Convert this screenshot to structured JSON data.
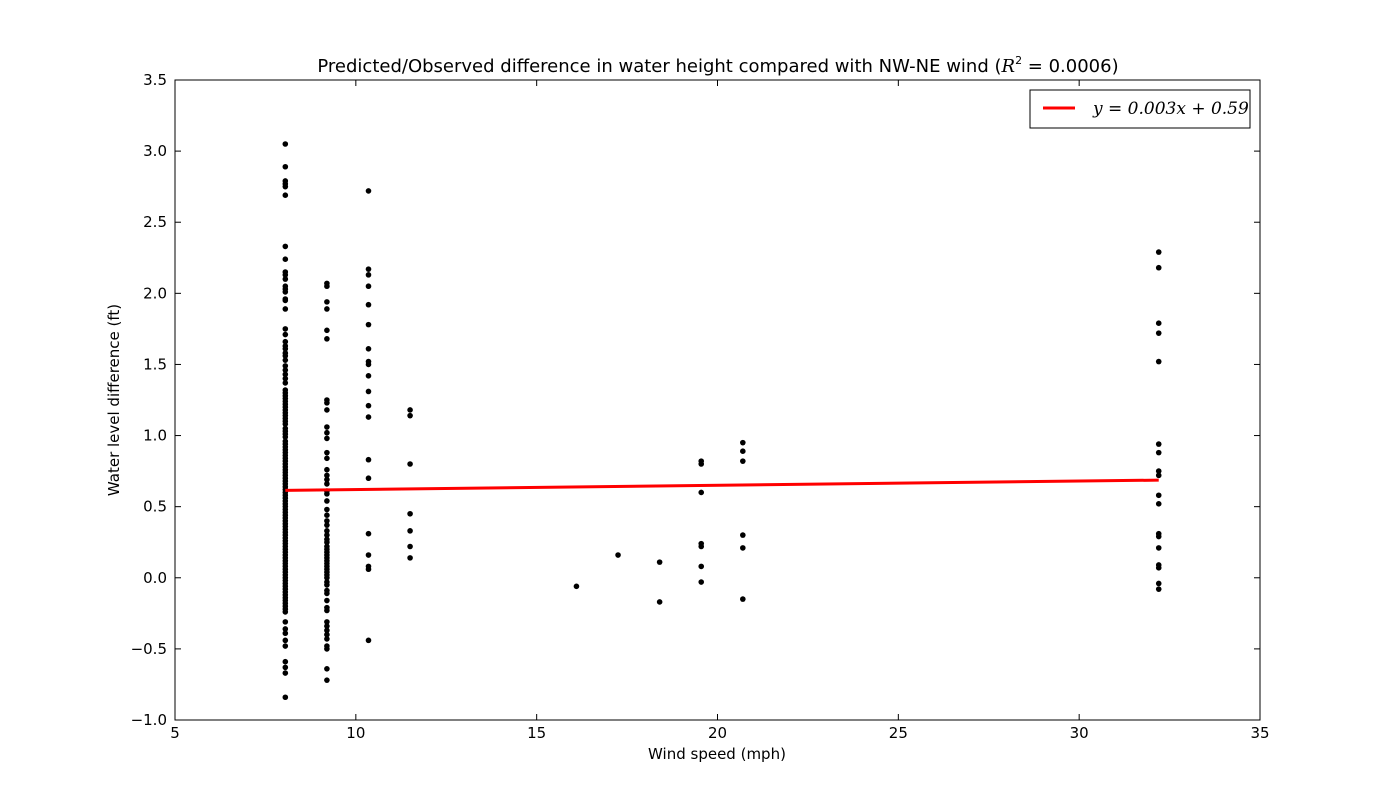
{
  "chart_data": {
    "type": "scatter",
    "title_prefix": "Predicted/Observed difference in water height compared with NW-NE wind (",
    "title_r2_symbol": "R",
    "title_r2_exp": "2",
    "title_suffix": " = 0.0006)",
    "xlabel": "Wind speed (mph)",
    "ylabel": "Water level difference (ft)",
    "xlim": [
      5,
      35
    ],
    "ylim": [
      -1.0,
      3.5
    ],
    "x_ticks": [
      5,
      10,
      15,
      20,
      25,
      30,
      35
    ],
    "y_ticks": [
      -1.0,
      -0.5,
      0.0,
      0.5,
      1.0,
      1.5,
      2.0,
      2.5,
      3.0,
      3.5
    ],
    "x_tick_labels": [
      "5",
      "10",
      "15",
      "20",
      "25",
      "30",
      "35"
    ],
    "y_tick_labels": [
      "−1.0",
      "−0.5",
      "0.0",
      "0.5",
      "1.0",
      "1.5",
      "2.0",
      "2.5",
      "3.0",
      "3.5"
    ],
    "grid": false,
    "legend_position": "top-right",
    "point_color": "#000000",
    "line_color": "#ff0000",
    "fit": {
      "slope": 0.003,
      "intercept": 0.59,
      "x_range": [
        8.05,
        32.2
      ],
      "label": "y = 0.003x + 0.59"
    },
    "series": [
      {
        "x": 8.05,
        "y": [
          3.05,
          2.89,
          2.79,
          2.77,
          2.75,
          2.69,
          2.33,
          2.24,
          2.15,
          2.13,
          2.1,
          2.05,
          2.03,
          2.01,
          1.96,
          1.95,
          1.89,
          1.75,
          1.71,
          1.66,
          1.63,
          1.61,
          1.58,
          1.56,
          1.53,
          1.49,
          1.46,
          1.43,
          1.4,
          1.37,
          1.32,
          1.3,
          1.28,
          1.26,
          1.24,
          1.22,
          1.2,
          1.18,
          1.16,
          1.14,
          1.12,
          1.1,
          1.08,
          1.05,
          1.03,
          1.01,
          0.99,
          0.96,
          0.94,
          0.92,
          0.9,
          0.88,
          0.86,
          0.84,
          0.82,
          0.8,
          0.78,
          0.76,
          0.74,
          0.72,
          0.7,
          0.68,
          0.66,
          0.64,
          0.62,
          0.6,
          0.58,
          0.56,
          0.54,
          0.52,
          0.5,
          0.48,
          0.46,
          0.44,
          0.42,
          0.4,
          0.38,
          0.36,
          0.34,
          0.32,
          0.3,
          0.28,
          0.26,
          0.24,
          0.22,
          0.2,
          0.18,
          0.16,
          0.14,
          0.12,
          0.1,
          0.08,
          0.06,
          0.04,
          0.02,
          0.0,
          -0.02,
          -0.04,
          -0.06,
          -0.08,
          -0.1,
          -0.12,
          -0.14,
          -0.16,
          -0.18,
          -0.2,
          -0.22,
          -0.24,
          -0.31,
          -0.36,
          -0.39,
          -0.44,
          -0.48,
          -0.59,
          -0.63,
          -0.67,
          -0.84
        ]
      },
      {
        "x": 9.2,
        "y": [
          2.07,
          2.05,
          1.94,
          1.89,
          1.74,
          1.68,
          1.25,
          1.23,
          1.18,
          1.06,
          1.02,
          0.98,
          0.88,
          0.84,
          0.76,
          0.72,
          0.69,
          0.66,
          0.61,
          0.59,
          0.54,
          0.48,
          0.44,
          0.4,
          0.37,
          0.33,
          0.3,
          0.27,
          0.25,
          0.22,
          0.2,
          0.18,
          0.16,
          0.14,
          0.12,
          0.1,
          0.08,
          0.06,
          0.04,
          0.02,
          0.0,
          -0.03,
          -0.05,
          -0.09,
          -0.11,
          -0.16,
          -0.21,
          -0.23,
          -0.31,
          -0.34,
          -0.37,
          -0.4,
          -0.43,
          -0.48,
          -0.5,
          -0.64,
          -0.72
        ]
      },
      {
        "x": 10.35,
        "y": [
          2.72,
          2.17,
          2.13,
          2.05,
          1.92,
          1.78,
          1.61,
          1.52,
          1.5,
          1.42,
          1.31,
          1.21,
          1.13,
          0.83,
          0.7,
          0.31,
          0.16,
          0.08,
          0.06,
          -0.44
        ]
      },
      {
        "x": 11.5,
        "y": [
          1.18,
          1.14,
          0.8,
          0.45,
          0.33,
          0.22,
          0.14
        ]
      },
      {
        "x": 16.1,
        "y": [
          -0.06
        ]
      },
      {
        "x": 17.25,
        "y": [
          0.16
        ]
      },
      {
        "x": 18.4,
        "y": [
          0.11,
          -0.17
        ]
      },
      {
        "x": 19.55,
        "y": [
          0.82,
          0.8,
          0.6,
          0.24,
          0.22,
          0.08,
          -0.03
        ]
      },
      {
        "x": 20.7,
        "y": [
          0.95,
          0.89,
          0.82,
          0.3,
          0.21,
          -0.15
        ]
      },
      {
        "x": 32.2,
        "y": [
          2.29,
          2.18,
          1.79,
          1.72,
          1.52,
          0.94,
          0.88,
          0.75,
          0.72,
          0.58,
          0.52,
          0.31,
          0.29,
          0.21,
          0.09,
          0.07,
          -0.04,
          -0.08
        ]
      }
    ]
  }
}
